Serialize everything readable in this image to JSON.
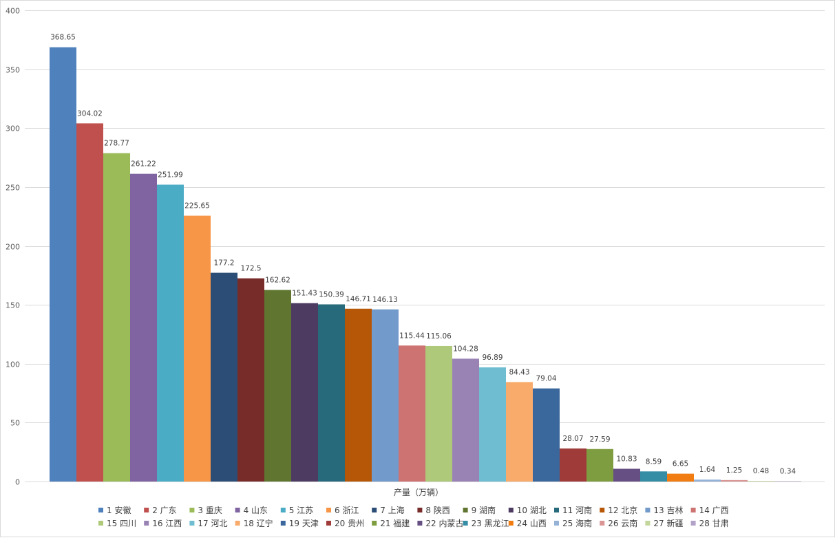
{
  "chart_data": {
    "type": "bar",
    "title": "",
    "xlabel": "产量（万辆）",
    "ylabel": "",
    "ylim": [
      0,
      400
    ],
    "yticks": [
      0,
      50,
      100,
      150,
      200,
      250,
      300,
      350,
      400
    ],
    "grid": true,
    "legend_position": "bottom",
    "series": [
      {
        "name": "1 安徽",
        "value": 368.65,
        "label": "368.65",
        "color": "#4F81BD"
      },
      {
        "name": "2 广东",
        "value": 304.02,
        "label": "304.02",
        "color": "#C0504D"
      },
      {
        "name": "3 重庆",
        "value": 278.77,
        "label": "278.77",
        "color": "#9BBB59"
      },
      {
        "name": "4 山东",
        "value": 261.22,
        "label": "261.22",
        "color": "#8064A2"
      },
      {
        "name": "5 江苏",
        "value": 251.99,
        "label": "251.99",
        "color": "#4BACC6"
      },
      {
        "name": "6 浙江",
        "value": 225.65,
        "label": "225.65",
        "color": "#F79646"
      },
      {
        "name": "7 上海",
        "value": 177.2,
        "label": "177.2",
        "color": "#2C4D75"
      },
      {
        "name": "8 陕西",
        "value": 172.5,
        "label": "172.5",
        "color": "#772C2A"
      },
      {
        "name": "9 湖南",
        "value": 162.62,
        "label": "162.62",
        "color": "#5F7530"
      },
      {
        "name": "10 湖北",
        "value": 151.43,
        "label": "151.43",
        "color": "#4D3B62"
      },
      {
        "name": "11 河南",
        "value": 150.39,
        "label": "150.39",
        "color": "#276A7C"
      },
      {
        "name": "12 北京",
        "value": 146.71,
        "label": "146.71",
        "color": "#B65708"
      },
      {
        "name": "13 吉林",
        "value": 146.13,
        "label": "146.13",
        "color": "#729ACA"
      },
      {
        "name": "14 广西",
        "value": 115.44,
        "label": "115.44",
        "color": "#CD7371"
      },
      {
        "name": "15 四川",
        "value": 115.06,
        "label": "115.06",
        "color": "#AFC97A"
      },
      {
        "name": "16 江西",
        "value": 104.28,
        "label": "104.28",
        "color": "#9983B5"
      },
      {
        "name": "17 河北",
        "value": 96.89,
        "label": "96.89",
        "color": "#6FBDD1"
      },
      {
        "name": "18 辽宁",
        "value": 84.43,
        "label": "84.43",
        "color": "#F9AB6B"
      },
      {
        "name": "19 天津",
        "value": 79.04,
        "label": "79.04",
        "color": "#3A679C"
      },
      {
        "name": "20 贵州",
        "value": 28.07,
        "label": "28.07",
        "color": "#9F3B38"
      },
      {
        "name": "21 福建",
        "value": 27.59,
        "label": "27.59",
        "color": "#7E9C40"
      },
      {
        "name": "22 内蒙古",
        "value": 10.83,
        "label": "10.83",
        "color": "#664F83"
      },
      {
        "name": "23 黑龙江",
        "value": 8.59,
        "label": "8.59",
        "color": "#358DA5"
      },
      {
        "name": "24 山西",
        "value": 6.65,
        "label": "6.65",
        "color": "#F07C12"
      },
      {
        "name": "25 海南",
        "value": 1.64,
        "label": "1.64",
        "color": "#95B3D7"
      },
      {
        "name": "26 云南",
        "value": 1.25,
        "label": "1.25",
        "color": "#D99694"
      },
      {
        "name": "27 新疆",
        "value": 0.48,
        "label": "0.48",
        "color": "#C3D69B"
      },
      {
        "name": "28 甘肃",
        "value": 0.34,
        "label": "0.34",
        "color": "#B3A2C7"
      }
    ]
  }
}
